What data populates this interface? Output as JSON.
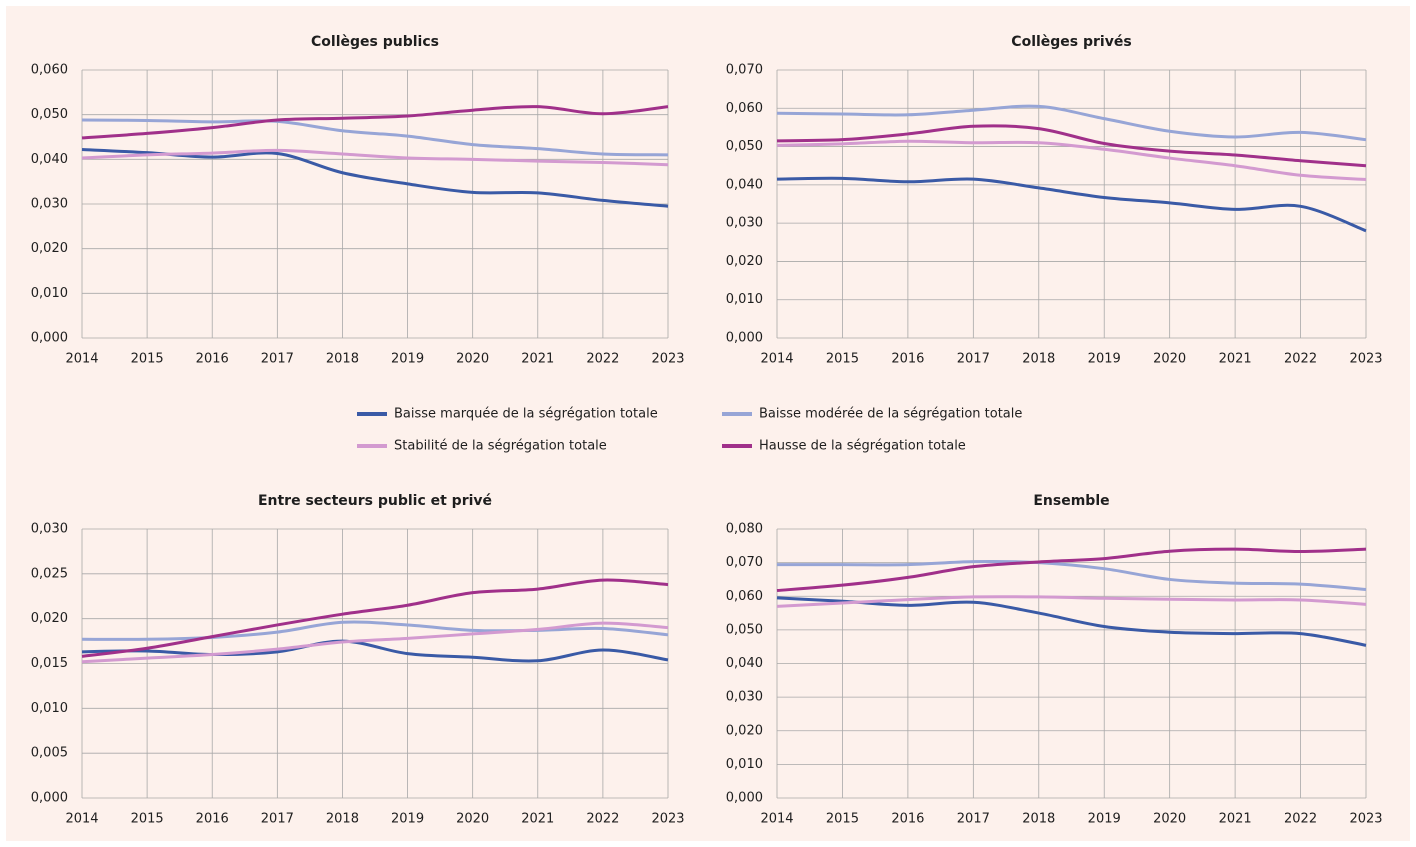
{
  "legend": {
    "series": [
      {
        "name": "Baisse marquée de la ségrégation totale",
        "color": "#3a5aa6"
      },
      {
        "name": "Baisse modérée de la ségrégation totale",
        "color": "#97a5d6"
      },
      {
        "name": "Stabilité de la ségrégation totale",
        "color": "#d39ad0"
      },
      {
        "name": "Hausse de la ségrégation totale",
        "color": "#a0308a"
      }
    ]
  },
  "chart_data": [
    {
      "type": "line",
      "title": "Collèges publics",
      "categories": [
        "2014",
        "2015",
        "2016",
        "2017",
        "2018",
        "2019",
        "2020",
        "2021",
        "2022",
        "2023"
      ],
      "ylim": [
        0,
        0.06
      ],
      "yticks": [
        {
          "value": 0,
          "label": "0,000"
        },
        {
          "value": 0.01,
          "label": "0,010"
        },
        {
          "value": 0.02,
          "label": "0,020"
        },
        {
          "value": 0.03,
          "label": "0,030"
        },
        {
          "value": 0.04,
          "label": "0,040"
        },
        {
          "value": 0.05,
          "label": "0,050"
        },
        {
          "value": 0.06,
          "label": "0,060"
        }
      ],
      "grid": true,
      "series": [
        {
          "values": [
            0.0422,
            0.0415,
            0.0405,
            0.0413,
            0.037,
            0.0345,
            0.0326,
            0.0325,
            0.0308,
            0.0295
          ]
        },
        {
          "values": [
            0.0488,
            0.0487,
            0.0484,
            0.0485,
            0.0464,
            0.0452,
            0.0433,
            0.0424,
            0.0412,
            0.041
          ]
        },
        {
          "values": [
            0.0403,
            0.041,
            0.0414,
            0.042,
            0.0412,
            0.0403,
            0.04,
            0.0396,
            0.0393,
            0.0388
          ]
        },
        {
          "values": [
            0.0448,
            0.0458,
            0.0471,
            0.0488,
            0.0492,
            0.0497,
            0.051,
            0.0518,
            0.0502,
            0.0518
          ]
        }
      ]
    },
    {
      "type": "line",
      "title": "Collèges privés",
      "categories": [
        "2014",
        "2015",
        "2016",
        "2017",
        "2018",
        "2019",
        "2020",
        "2021",
        "2022",
        "2023"
      ],
      "ylim": [
        0,
        0.07
      ],
      "yticks": [
        {
          "value": 0,
          "label": "0,000"
        },
        {
          "value": 0.01,
          "label": "0,010"
        },
        {
          "value": 0.02,
          "label": "0,020"
        },
        {
          "value": 0.03,
          "label": "0,030"
        },
        {
          "value": 0.04,
          "label": "0,040"
        },
        {
          "value": 0.05,
          "label": "0,050"
        },
        {
          "value": 0.06,
          "label": "0,060"
        },
        {
          "value": 0.07,
          "label": "0,070"
        }
      ],
      "grid": true,
      "series": [
        {
          "values": [
            0.0415,
            0.0417,
            0.0408,
            0.0415,
            0.0392,
            0.0367,
            0.0353,
            0.0336,
            0.0344,
            0.028
          ]
        },
        {
          "values": [
            0.0587,
            0.0585,
            0.0583,
            0.0595,
            0.0605,
            0.0573,
            0.054,
            0.0525,
            0.0537,
            0.0518
          ]
        },
        {
          "values": [
            0.0503,
            0.0507,
            0.0514,
            0.051,
            0.051,
            0.0493,
            0.047,
            0.045,
            0.0425,
            0.0414
          ]
        },
        {
          "values": [
            0.0515,
            0.0518,
            0.0533,
            0.0553,
            0.0547,
            0.0508,
            0.0488,
            0.0478,
            0.0463,
            0.045
          ]
        }
      ]
    },
    {
      "type": "line",
      "title": "Entre secteurs public et privé",
      "categories": [
        "2014",
        "2015",
        "2016",
        "2017",
        "2018",
        "2019",
        "2020",
        "2021",
        "2022",
        "2023"
      ],
      "ylim": [
        0,
        0.03
      ],
      "yticks": [
        {
          "value": 0,
          "label": "0,000"
        },
        {
          "value": 0.005,
          "label": "0,005"
        },
        {
          "value": 0.01,
          "label": "0,010"
        },
        {
          "value": 0.015,
          "label": "0,015"
        },
        {
          "value": 0.02,
          "label": "0,020"
        },
        {
          "value": 0.025,
          "label": "0,025"
        },
        {
          "value": 0.03,
          "label": "0,030"
        }
      ],
      "grid": true,
      "series": [
        {
          "values": [
            0.0163,
            0.0164,
            0.016,
            0.0163,
            0.0175,
            0.0161,
            0.0157,
            0.0153,
            0.0165,
            0.0154
          ]
        },
        {
          "values": [
            0.0177,
            0.0177,
            0.0179,
            0.0185,
            0.0196,
            0.0193,
            0.0187,
            0.0187,
            0.0189,
            0.0182
          ]
        },
        {
          "values": [
            0.0152,
            0.0156,
            0.016,
            0.0166,
            0.0174,
            0.0178,
            0.0183,
            0.0188,
            0.0195,
            0.019
          ]
        },
        {
          "values": [
            0.0158,
            0.0167,
            0.018,
            0.0193,
            0.0205,
            0.0215,
            0.0229,
            0.0233,
            0.0243,
            0.0238
          ]
        }
      ]
    },
    {
      "type": "line",
      "title": "Ensemble",
      "categories": [
        "2014",
        "2015",
        "2016",
        "2017",
        "2018",
        "2019",
        "2020",
        "2021",
        "2022",
        "2023"
      ],
      "ylim": [
        0,
        0.08
      ],
      "yticks": [
        {
          "value": 0,
          "label": "0,000"
        },
        {
          "value": 0.01,
          "label": "0,010"
        },
        {
          "value": 0.02,
          "label": "0,020"
        },
        {
          "value": 0.03,
          "label": "0,030"
        },
        {
          "value": 0.04,
          "label": "0,040"
        },
        {
          "value": 0.05,
          "label": "0,050"
        },
        {
          "value": 0.06,
          "label": "0,060"
        },
        {
          "value": 0.07,
          "label": "0,070"
        },
        {
          "value": 0.08,
          "label": "0,080"
        }
      ],
      "grid": true,
      "series": [
        {
          "values": [
            0.0595,
            0.0585,
            0.0573,
            0.0582,
            0.055,
            0.051,
            0.0493,
            0.0489,
            0.0489,
            0.0454
          ]
        },
        {
          "values": [
            0.0694,
            0.0694,
            0.0694,
            0.0703,
            0.07,
            0.0682,
            0.065,
            0.0639,
            0.0636,
            0.062
          ]
        },
        {
          "values": [
            0.057,
            0.058,
            0.059,
            0.0598,
            0.0598,
            0.0594,
            0.0591,
            0.0589,
            0.0589,
            0.0576
          ]
        },
        {
          "values": [
            0.0617,
            0.0633,
            0.0656,
            0.0688,
            0.0702,
            0.0712,
            0.0734,
            0.074,
            0.0733,
            0.074
          ]
        }
      ]
    }
  ]
}
